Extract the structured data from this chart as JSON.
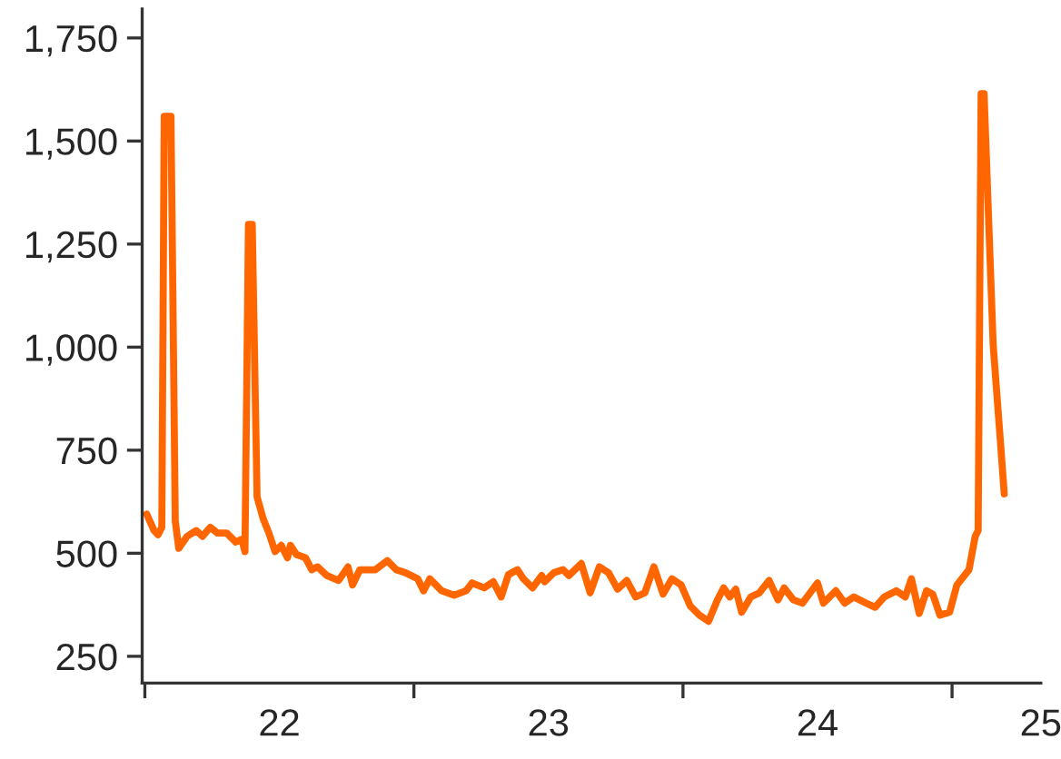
{
  "chart_data": {
    "type": "line",
    "x": [
      22.007,
      22.034,
      22.049,
      22.063,
      22.072,
      22.097,
      22.113,
      22.126,
      22.157,
      22.191,
      22.214,
      22.243,
      22.27,
      22.304,
      22.338,
      22.36,
      22.372,
      22.385,
      22.399,
      22.417,
      22.439,
      22.461,
      22.484,
      22.507,
      22.53,
      22.541,
      22.563,
      22.597,
      22.62,
      22.642,
      22.676,
      22.72,
      22.755,
      22.772,
      22.799,
      22.856,
      22.901,
      22.934,
      22.968,
      23.014,
      23.036,
      23.059,
      23.103,
      23.149,
      23.194,
      23.216,
      23.261,
      23.295,
      23.324,
      23.351,
      23.385,
      23.407,
      23.441,
      23.475,
      23.486,
      23.52,
      23.554,
      23.576,
      23.622,
      23.655,
      23.689,
      23.723,
      23.757,
      23.791,
      23.824,
      23.858,
      23.892,
      23.926,
      23.959,
      23.993,
      24.027,
      24.061,
      24.095,
      24.128,
      24.151,
      24.174,
      24.196,
      24.218,
      24.252,
      24.284,
      24.32,
      24.353,
      24.376,
      24.41,
      24.444,
      24.478,
      24.5,
      24.522,
      24.568,
      24.601,
      24.635,
      24.68,
      24.714,
      24.748,
      24.793,
      24.826,
      24.849,
      24.878,
      24.905,
      24.928,
      24.955,
      24.991,
      25.018,
      25.063,
      25.086,
      25.097,
      25.108,
      25.119,
      25.153,
      25.18,
      25.194
    ],
    "series": [
      {
        "color": "#ff6600",
        "values": [
          595,
          555,
          545,
          563,
          1560,
          1560,
          578,
          512,
          541,
          555,
          541,
          563,
          549,
          549,
          527,
          534,
          504,
          1298,
          1298,
          637,
          585,
          549,
          504,
          519,
          489,
          519,
          497,
          489,
          460,
          467,
          446,
          434,
          467,
          423,
          460,
          460,
          482,
          460,
          453,
          438,
          409,
          438,
          409,
          398,
          409,
          428,
          416,
          431,
          394,
          448,
          460,
          438,
          416,
          446,
          431,
          453,
          460,
          446,
          475,
          404,
          467,
          453,
          413,
          434,
          394,
          404,
          467,
          401,
          438,
          423,
          372,
          350,
          335,
          387,
          416,
          394,
          413,
          357,
          394,
          404,
          434,
          387,
          416,
          387,
          379,
          409,
          428,
          379,
          409,
          379,
          394,
          379,
          369,
          394,
          409,
          394,
          438,
          354,
          409,
          401,
          350,
          357,
          423,
          460,
          541,
          555,
          1615,
          1615,
          1004,
          769,
          644
        ]
      }
    ],
    "xlim": [
      21.99,
      25.33
    ],
    "xticks": [
      {
        "value": 22,
        "label": null
      },
      {
        "value": 22.5,
        "label": "22"
      },
      {
        "value": 23,
        "label": null
      },
      {
        "value": 23.5,
        "label": "23"
      },
      {
        "value": 24,
        "label": null
      },
      {
        "value": 24.5,
        "label": "24"
      },
      {
        "value": 25,
        "label": null
      },
      {
        "value": 25.33,
        "label": "25"
      }
    ],
    "ylim": [
      185,
      1820
    ],
    "yticks": [
      {
        "value": 250,
        "label": "250"
      },
      {
        "value": 500,
        "label": "500"
      },
      {
        "value": 750,
        "label": "750"
      },
      {
        "value": 1000,
        "label": "1,000"
      },
      {
        "value": 1250,
        "label": "1,250"
      },
      {
        "value": 1500,
        "label": "1,500"
      },
      {
        "value": 1750,
        "label": "1,750"
      }
    ],
    "grid": false,
    "legend": false
  }
}
